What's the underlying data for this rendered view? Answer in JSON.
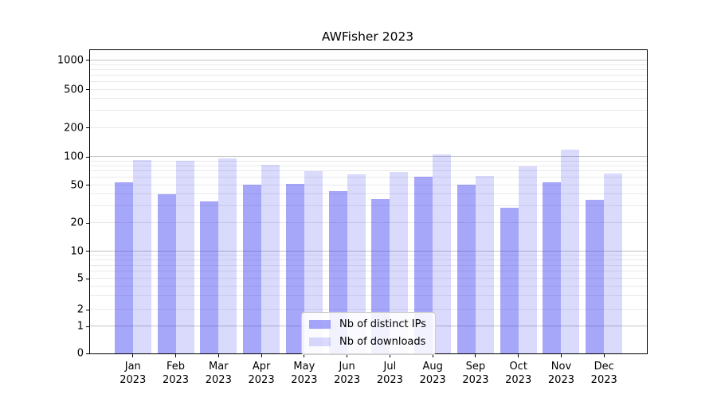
{
  "title": "AWFisher 2023",
  "chart_data": {
    "type": "bar",
    "title": "AWFisher 2023",
    "yscale": "symlog",
    "grid": true,
    "legend_position": "lower center",
    "categories": [
      "Jan",
      "Feb",
      "Mar",
      "Apr",
      "May",
      "Jun",
      "Jul",
      "Aug",
      "Sep",
      "Oct",
      "Nov",
      "Dec"
    ],
    "year_label": "2023",
    "series": [
      {
        "name": "Nb of distinct IPs",
        "color": "rgba(60,60,244,0.45)",
        "values": [
          54,
          40,
          34,
          51,
          52,
          43,
          36,
          61,
          51,
          29,
          54,
          35
        ]
      },
      {
        "name": "Nb of downloads",
        "color": "rgba(60,60,244,0.19)",
        "values": [
          93,
          91,
          96,
          82,
          70,
          65,
          69,
          106,
          63,
          80,
          118,
          67
        ]
      }
    ],
    "yticks": [
      0,
      1,
      2,
      5,
      10,
      20,
      50,
      100,
      200,
      500,
      1000
    ],
    "ylim": [
      0,
      1250
    ]
  },
  "colors": {
    "major_grid": "#c3c3c3",
    "minor_grid": "#e9e9e9",
    "spine": "#000000",
    "text": "#000000"
  }
}
